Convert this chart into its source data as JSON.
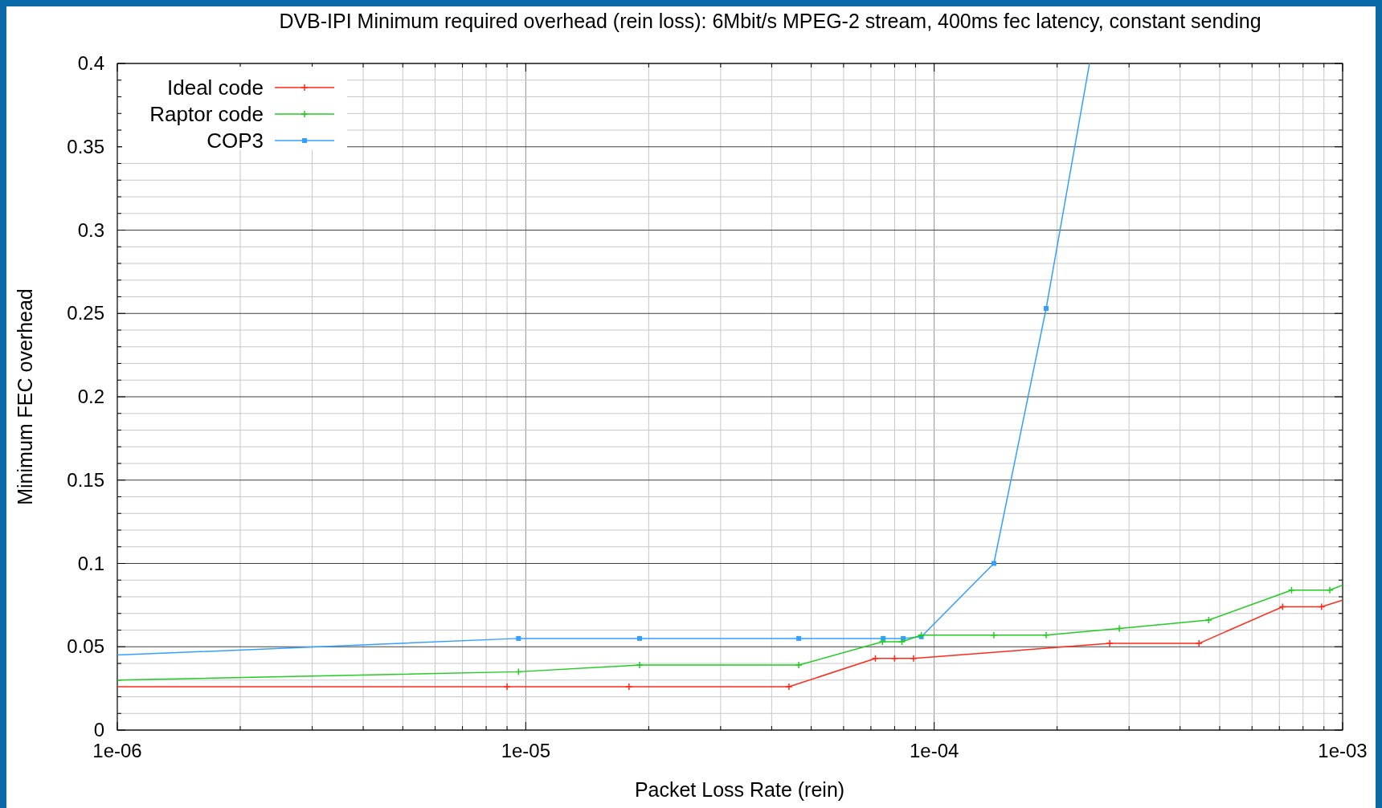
{
  "chart_data": {
    "type": "line",
    "title": "DVB-IPI Minimum required overhead (rein loss): 6Mbit/s MPEG-2 stream, 400ms fec latency, constant sending",
    "xlabel": "Packet Loss Rate (rein)",
    "ylabel": "Minimum FEC overhead",
    "log": "x",
    "xlim": [
      1e-06,
      0.001
    ],
    "ylim": [
      0,
      0.4
    ],
    "xticks": [
      {
        "value": 1e-06,
        "label": "1e-06"
      },
      {
        "value": 2e-06,
        "label": null
      },
      {
        "value": 3e-06,
        "label": null
      },
      {
        "value": 4e-06,
        "label": null
      },
      {
        "value": 5e-06,
        "label": null
      },
      {
        "value": 6e-06,
        "label": null
      },
      {
        "value": 7e-06,
        "label": null
      },
      {
        "value": 8e-06,
        "label": null
      },
      {
        "value": 9e-06,
        "label": null
      },
      {
        "value": 1e-05,
        "label": "1e-05"
      },
      {
        "value": 2e-05,
        "label": null
      },
      {
        "value": 3e-05,
        "label": null
      },
      {
        "value": 4e-05,
        "label": null
      },
      {
        "value": 5e-05,
        "label": null
      },
      {
        "value": 6e-05,
        "label": null
      },
      {
        "value": 7e-05,
        "label": null
      },
      {
        "value": 8e-05,
        "label": null
      },
      {
        "value": 9e-05,
        "label": null
      },
      {
        "value": 0.0001,
        "label": "1e-04"
      },
      {
        "value": 0.0002,
        "label": null
      },
      {
        "value": 0.0003,
        "label": null
      },
      {
        "value": 0.0004,
        "label": null
      },
      {
        "value": 0.0005,
        "label": null
      },
      {
        "value": 0.0006,
        "label": null
      },
      {
        "value": 0.0007,
        "label": null
      },
      {
        "value": 0.0008,
        "label": null
      },
      {
        "value": 0.0009,
        "label": null
      },
      {
        "value": 0.001,
        "label": "1e-03"
      }
    ],
    "yticks": [
      0,
      {
        "value": 0.01,
        "label": null
      },
      {
        "value": 0.02,
        "label": null
      },
      {
        "value": 0.03,
        "label": null
      },
      {
        "value": 0.04,
        "label": null
      },
      0.05,
      {
        "value": 0.06,
        "label": null
      },
      {
        "value": 0.07,
        "label": null
      },
      {
        "value": 0.08,
        "label": null
      },
      {
        "value": 0.09,
        "label": null
      },
      0.1,
      {
        "value": 0.11,
        "label": null
      },
      {
        "value": 0.12,
        "label": null
      },
      {
        "value": 0.13,
        "label": null
      },
      {
        "value": 0.14,
        "label": null
      },
      0.15,
      {
        "value": 0.16,
        "label": null
      },
      {
        "value": 0.17,
        "label": null
      },
      {
        "value": 0.18,
        "label": null
      },
      {
        "value": 0.19,
        "label": null
      },
      0.2,
      {
        "value": 0.21,
        "label": null
      },
      {
        "value": 0.22,
        "label": null
      },
      {
        "value": 0.23,
        "label": null
      },
      {
        "value": 0.24,
        "label": null
      },
      0.25,
      {
        "value": 0.26,
        "label": null
      },
      {
        "value": 0.27,
        "label": null
      },
      {
        "value": 0.28,
        "label": null
      },
      {
        "value": 0.29,
        "label": null
      },
      0.3,
      {
        "value": 0.31,
        "label": null
      },
      {
        "value": 0.32,
        "label": null
      },
      {
        "value": 0.33,
        "label": null
      },
      {
        "value": 0.34,
        "label": null
      },
      0.35,
      {
        "value": 0.36,
        "label": null
      },
      {
        "value": 0.37,
        "label": null
      },
      {
        "value": 0.38,
        "label": null
      },
      {
        "value": 0.39,
        "label": null
      },
      0.4
    ],
    "grid": true,
    "legend": "top left",
    "series": [
      {
        "name": "Ideal code",
        "color": "#ff2a1a",
        "marker": "cross",
        "x": [
          1e-06,
          9e-06,
          1.79e-05,
          4.41e-05,
          7.18e-05,
          8e-05,
          8.9e-05,
          0.000269,
          0.000445,
          0.000713,
          0.000888,
          0.001
        ],
        "values": [
          0.026,
          0.026,
          0.026,
          0.026,
          0.043,
          0.043,
          0.043,
          0.052,
          0.052,
          0.074,
          0.074,
          0.078
        ]
      },
      {
        "name": "Raptor code",
        "color": "#22cc22",
        "marker": "cross",
        "x": [
          1e-06,
          9.6e-06,
          1.9e-05,
          4.66e-05,
          7.47e-05,
          8.34e-05,
          9.3e-05,
          0.00014,
          0.000188,
          0.000284,
          0.00047,
          0.00075,
          0.00093,
          0.001
        ],
        "values": [
          0.03,
          0.035,
          0.039,
          0.039,
          0.053,
          0.053,
          0.057,
          0.057,
          0.057,
          0.061,
          0.066,
          0.084,
          0.084,
          0.087
        ]
      },
      {
        "name": "COP3",
        "color": "#33a0ff",
        "marker": "square",
        "x": [
          1e-06,
          9.6e-06,
          1.9e-05,
          4.66e-05,
          7.5e-05,
          8.4e-05,
          9.3e-05,
          0.00014,
          0.000188,
          0.00024
        ],
        "values": [
          0.045,
          0.055,
          0.055,
          0.055,
          0.055,
          0.055,
          0.056,
          0.1,
          0.253,
          0.4
        ]
      }
    ]
  }
}
